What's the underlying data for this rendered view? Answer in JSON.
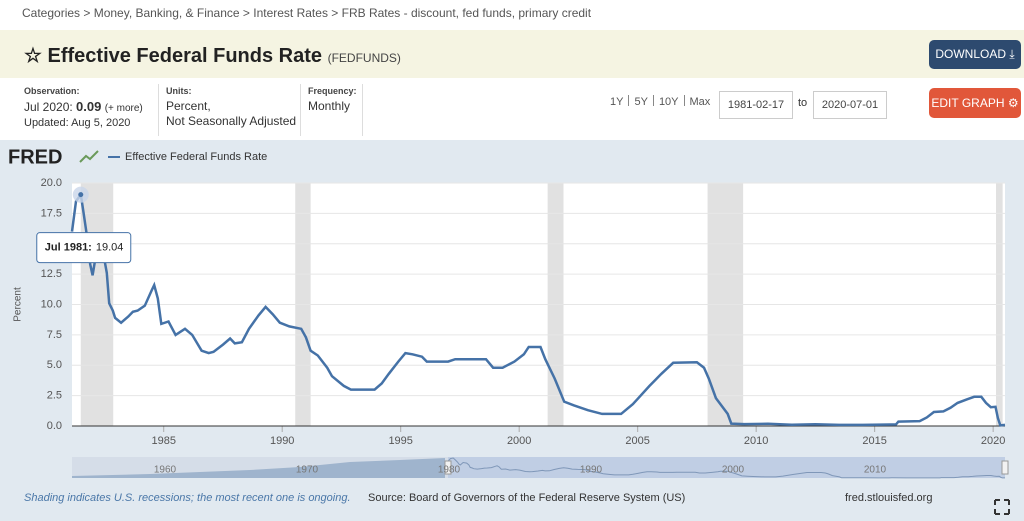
{
  "breadcrumb": "Categories > Money, Banking, & Finance > Interest Rates > FRB Rates - discount, fed funds, primary credit",
  "header": {
    "title": "Effective Federal Funds Rate",
    "series_id": "(FEDFUNDS)",
    "download": "DOWNLOAD"
  },
  "meta": {
    "observation_label": "Observation:",
    "observation_date": "Jul 2020:",
    "observation_value": 0.09,
    "more": "(+ more)",
    "updated": "Updated: Aug 5, 2020",
    "units_label": "Units:",
    "units": [
      "Percent,",
      "Not Seasonally Adjusted"
    ],
    "frequency_label": "Frequency:",
    "frequency": "Monthly"
  },
  "range": {
    "buttons": [
      "1Y",
      "5Y",
      "10Y",
      "Max"
    ],
    "start": "1981-02-17",
    "to": "to",
    "end": "2020-07-01",
    "edit": "EDIT GRAPH"
  },
  "chart_data": {
    "type": "line",
    "logo": "FRED",
    "ylabel": "Percent",
    "x": [
      1981.13,
      1981.3,
      1981.5,
      1981.6,
      1981.8,
      1981.9,
      1982.0,
      1982.2,
      1982.3,
      1982.45,
      1982.6,
      1982.7,
      1982.85,
      1982.95,
      1983.2,
      1983.5,
      1983.7,
      1983.9,
      1984.2,
      1984.5,
      1984.6,
      1984.75,
      1984.9,
      1985.2,
      1985.5,
      1985.9,
      1986.2,
      1986.6,
      1986.9,
      1987.1,
      1987.5,
      1987.8,
      1988.0,
      1988.3,
      1988.6,
      1989.0,
      1989.3,
      1989.6,
      1989.9,
      1990.3,
      1990.8,
      1991.0,
      1991.2,
      1991.5,
      1991.9,
      1992.1,
      1992.6,
      1992.9,
      1993.5,
      1993.9,
      1994.2,
      1994.5,
      1994.9,
      1995.2,
      1995.5,
      1995.9,
      1996.1,
      1996.5,
      1997.0,
      1997.3,
      1998.0,
      1998.6,
      1998.9,
      1999.3,
      1999.8,
      2000.2,
      2000.4,
      2000.9,
      2001.1,
      2001.5,
      2001.9,
      2002.3,
      2002.9,
      2003.5,
      2004.3,
      2004.8,
      2005.5,
      2006.0,
      2006.5,
      2007.5,
      2007.8,
      2008.0,
      2008.3,
      2008.8,
      2008.95,
      2009.5,
      2010.5,
      2011.5,
      2012.5,
      2013.5,
      2014.5,
      2015.9,
      2016.0,
      2016.9,
      2017.2,
      2017.5,
      2017.9,
      2018.2,
      2018.5,
      2018.9,
      2019.2,
      2019.5,
      2019.7,
      2019.9,
      2020.1,
      2020.2,
      2020.3,
      2020.5
    ],
    "series": [
      {
        "name": "Effective Federal Funds Rate",
        "color": "#4572a7",
        "values": [
          16.0,
          18.5,
          19.04,
          17.8,
          15.1,
          13.3,
          12.4,
          14.8,
          14.5,
          14.2,
          12.6,
          10.1,
          9.5,
          8.9,
          8.5,
          9.0,
          9.4,
          9.5,
          9.9,
          11.2,
          11.6,
          10.5,
          8.4,
          8.6,
          7.5,
          8.0,
          7.5,
          6.2,
          6.0,
          6.1,
          6.7,
          7.2,
          6.8,
          6.9,
          8.0,
          9.1,
          9.8,
          9.2,
          8.5,
          8.2,
          8.0,
          7.3,
          6.2,
          5.8,
          4.8,
          4.1,
          3.3,
          3.0,
          3.0,
          3.0,
          3.5,
          4.3,
          5.3,
          6.0,
          5.9,
          5.7,
          5.3,
          5.3,
          5.3,
          5.5,
          5.5,
          5.5,
          4.8,
          4.8,
          5.3,
          5.9,
          6.5,
          6.5,
          5.5,
          3.9,
          2.0,
          1.7,
          1.3,
          1.0,
          1.0,
          1.8,
          3.3,
          4.3,
          5.2,
          5.25,
          4.8,
          3.9,
          2.3,
          1.0,
          0.2,
          0.16,
          0.18,
          0.1,
          0.15,
          0.09,
          0.09,
          0.13,
          0.36,
          0.4,
          0.7,
          1.15,
          1.2,
          1.5,
          1.9,
          2.2,
          2.4,
          2.4,
          1.9,
          1.55,
          1.58,
          0.65,
          0.05,
          0.09
        ]
      }
    ],
    "xlim": [
      1981.13,
      2020.5
    ],
    "xticks": [
      1985,
      1990,
      1995,
      2000,
      2005,
      2010,
      2015,
      2020
    ],
    "ylim": [
      0,
      20
    ],
    "yticks": [
      {
        "value": 0,
        "label": "0.0"
      },
      2.5,
      {
        "value": 5,
        "label": "5.0"
      },
      7.5,
      {
        "value": 10,
        "label": "10.0"
      },
      12.5,
      {
        "value": 15,
        "label": "15.0"
      },
      17.5,
      {
        "value": 20,
        "label": "20.0"
      }
    ],
    "grid": true,
    "recessions": [
      {
        "start": 1981.5,
        "end": 1982.87
      },
      {
        "start": 1990.55,
        "end": 1991.2
      },
      {
        "start": 2001.2,
        "end": 2001.87
      },
      {
        "start": 2007.95,
        "end": 2009.45
      },
      {
        "start": 2020.12,
        "end": 2020.4
      }
    ],
    "tooltip": {
      "label": "Jul 1981:",
      "value": 19.04
    },
    "navigator_ticks": [
      1960,
      1970,
      1980,
      1990,
      2000,
      2010
    ],
    "note": "Shading indicates U.S. recessions; the most recent one is ongoing.",
    "source": "Source: Board of Governors of the Federal Reserve System (US)",
    "site": "fred.stlouisfed.org"
  }
}
